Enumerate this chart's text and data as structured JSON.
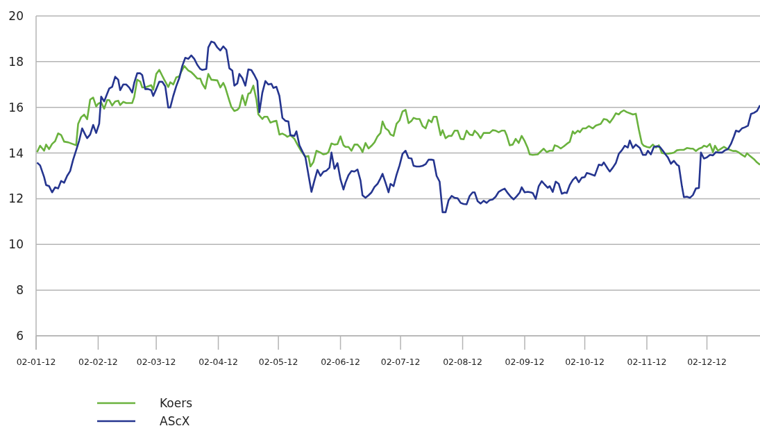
{
  "chart_data": {
    "type": "line",
    "ylim": [
      6,
      20
    ],
    "yticks": [
      6,
      8,
      10,
      12,
      14,
      16,
      18,
      20
    ],
    "xlim": [
      "2012-01-02",
      "2012-12-28T12:00"
    ],
    "xticks": [
      {
        "value": "2012-01-02",
        "label": "02-01-12"
      },
      {
        "value": "2012-02-02",
        "label": "02-02-12"
      },
      {
        "value": "2012-03-02",
        "label": "02-03-12"
      },
      {
        "value": "2012-04-02",
        "label": "02-04-12"
      },
      {
        "value": "2012-05-02",
        "label": "02-05-12"
      },
      {
        "value": "2012-06-02",
        "label": "02-06-12"
      },
      {
        "value": "2012-07-02",
        "label": "02-07-12"
      },
      {
        "value": "2012-08-02",
        "label": "02-08-12"
      },
      {
        "value": "2012-09-02",
        "label": "02-09-12"
      },
      {
        "value": "2012-10-02",
        "label": "02-10-12"
      },
      {
        "value": "2012-11-02",
        "label": "02-11-12"
      },
      {
        "value": "2012-12-02",
        "label": "02-12-12"
      }
    ],
    "grid": "y",
    "legend": "bottom",
    "marker": "none",
    "line_style": "solid",
    "series": [
      {
        "name": "Koers",
        "color": "#6ab23e",
        "x": [
          "2012-01-02T12:00",
          "2012-01-04",
          "2012-01-06",
          "2012-01-07",
          "2012-01-08T12:00",
          "2012-01-10",
          "2012-01-11T12:00",
          "2012-01-13",
          "2012-01-14T12:00",
          "2012-01-16",
          "2012-01-18",
          "2012-01-22",
          "2012-01-23",
          "2012-01-24T12:00",
          "2012-01-26",
          "2012-01-27T12:00",
          "2012-01-29",
          "2012-01-30T12:00",
          "2012-02-01",
          "2012-02-02",
          "2012-02-03T12:00",
          "2012-02-05",
          "2012-02-06T12:00",
          "2012-02-07T12:00",
          "2012-02-09",
          "2012-02-10T12:00",
          "2012-02-12",
          "2012-02-13",
          "2012-02-14T12:00",
          "2012-02-16",
          "2012-02-19",
          "2012-02-20",
          "2012-02-21T12:00",
          "2012-02-23",
          "2012-02-24",
          "2012-02-25T12:00",
          "2012-02-28T12:00",
          "2012-02-29T12:00",
          "2012-03-02",
          "2012-03-03T12:00",
          "2012-03-05",
          "2012-03-06",
          "2012-03-08",
          "2012-03-09",
          "2012-03-10T12:00",
          "2012-03-12",
          "2012-03-13T12:00",
          "2012-03-14T12:00",
          "2012-03-16",
          "2012-03-18",
          "2012-03-19T12:00",
          "2012-03-21",
          "2012-03-22T12:00",
          "2012-03-24",
          "2012-03-25",
          "2012-03-26T12:00",
          "2012-03-28",
          "2012-03-29T12:00",
          "2012-04-01T12:00",
          "2012-04-03",
          "2012-04-04T12:00",
          "2012-04-05T12:00",
          "2012-04-07T12:00",
          "2012-04-08T12:00",
          "2012-04-10",
          "2012-04-11T12:00",
          "2012-04-12T12:00",
          "2012-04-14",
          "2012-04-15T12:00",
          "2012-04-17",
          "2012-04-18",
          "2012-04-19T12:00",
          "2012-04-21",
          "2012-04-22",
          "2012-04-24",
          "2012-04-25",
          "2012-04-26T12:00",
          "2012-04-28",
          "2012-04-29T12:00",
          "2012-05-01",
          "2012-05-02T12:00",
          "2012-05-04",
          "2012-05-05T12:00",
          "2012-05-06T12:00",
          "2012-05-08",
          "2012-05-10",
          "2012-05-11T12:00",
          "2012-05-13T12:00",
          "2012-05-15T12:00",
          "2012-05-17",
          "2012-05-18",
          "2012-05-19T12:00",
          "2012-05-21",
          "2012-05-23",
          "2012-05-24T12:00",
          "2012-05-26",
          "2012-05-27",
          "2012-05-28T12:00",
          "2012-05-30",
          "2012-05-31T12:00",
          "2012-06-02",
          "2012-06-03T12:00",
          "2012-06-04T12:00",
          "2012-06-06",
          "2012-06-07T12:00",
          "2012-06-09",
          "2012-06-10T12:00",
          "2012-06-12",
          "2012-06-13",
          "2012-06-14T12:00",
          "2012-06-16",
          "2012-06-17T12:00",
          "2012-06-19",
          "2012-06-20T12:00",
          "2012-06-22",
          "2012-06-23",
          "2012-06-24T12:00",
          "2012-06-26",
          "2012-06-27",
          "2012-06-28T12:00",
          "2012-06-30",
          "2012-07-01T12:00",
          "2012-07-03",
          "2012-07-04T12:00",
          "2012-07-06",
          "2012-07-07T12:00",
          "2012-07-08T12:00",
          "2012-07-10",
          "2012-07-11T12:00",
          "2012-07-13",
          "2012-07-14T12:00",
          "2012-07-16",
          "2012-07-17T12:00",
          "2012-07-18T12:00",
          "2012-07-20",
          "2012-07-22",
          "2012-07-23",
          "2012-07-24T12:00",
          "2012-07-26",
          "2012-07-27T12:00",
          "2012-07-29",
          "2012-07-30T12:00",
          "2012-08-01",
          "2012-08-02T12:00",
          "2012-08-04",
          "2012-08-05T12:00",
          "2012-08-07",
          "2012-08-08",
          "2012-08-09T12:00",
          "2012-08-11",
          "2012-08-12T12:00",
          "2012-08-14",
          "2012-08-15T12:00",
          "2012-08-17",
          "2012-08-18T12:00",
          "2012-08-20",
          "2012-08-21T12:00",
          "2012-08-23",
          "2012-08-24",
          "2012-08-25T12:00",
          "2012-08-27",
          "2012-08-28T12:00",
          "2012-08-30",
          "2012-08-31T12:00",
          "2012-09-02",
          "2012-09-03T12:00",
          "2012-09-04T12:00",
          "2012-09-06",
          "2012-09-08T12:00",
          "2012-09-10",
          "2012-09-11T12:00",
          "2012-09-13",
          "2012-09-14T12:00",
          "2012-09-16",
          "2012-09-17",
          "2012-09-18T12:00",
          "2012-09-20",
          "2012-09-21T12:00",
          "2012-09-23",
          "2012-09-24T12:00",
          "2012-09-26",
          "2012-09-27",
          "2012-09-28T12:00",
          "2012-09-29T12:00",
          "2012-10-01",
          "2012-10-02T12:00",
          "2012-10-04",
          "2012-10-06",
          "2012-10-07T12:00",
          "2012-10-09",
          "2012-10-10",
          "2012-10-11T12:00",
          "2012-10-13",
          "2012-10-14T12:00",
          "2012-10-16",
          "2012-10-17T12:00",
          "2012-10-19",
          "2012-10-20",
          "2012-10-21T12:00",
          "2012-10-23",
          "2012-10-24T12:00",
          "2012-10-26",
          "2012-10-27T12:00",
          "2012-10-29",
          "2012-10-30T12:00",
          "2012-10-31T12:00",
          "2012-11-02",
          "2012-11-03T12:00",
          "2012-11-05",
          "2012-11-06T12:00",
          "2012-11-08",
          "2012-11-09T12:00",
          "2012-11-11",
          "2012-11-12T12:00",
          "2012-11-14",
          "2012-11-15T12:00",
          "2012-11-17",
          "2012-11-18T12:00",
          "2012-11-20T12:00",
          "2012-11-22",
          "2012-11-24",
          "2012-11-25",
          "2012-11-26T12:00",
          "2012-11-28",
          "2012-11-29T12:00",
          "2012-11-30T12:00",
          "2012-12-02",
          "2012-12-03T12:00",
          "2012-12-05",
          "2012-12-06",
          "2012-12-07T12:00",
          "2012-12-09",
          "2012-12-10T12:00",
          "2012-12-12",
          "2012-12-13T12:00",
          "2012-12-15",
          "2012-12-16T12:00",
          "2012-12-18",
          "2012-12-19T12:00",
          "2012-12-21",
          "2012-12-22",
          "2012-12-23T12:00",
          "2012-12-25T12:00",
          "2012-12-27",
          "2012-12-28T12:00"
        ],
        "values": [
          14.04,
          14.32,
          14.1,
          14.37,
          14.17,
          14.4,
          14.52,
          14.86,
          14.79,
          14.5,
          14.47,
          14.34,
          15.28,
          15.57,
          15.68,
          15.48,
          16.34,
          16.43,
          16.04,
          16.16,
          16.22,
          15.94,
          16.32,
          16.32,
          16.08,
          16.26,
          16.29,
          16.1,
          16.24,
          16.19,
          16.19,
          16.45,
          17.21,
          17.13,
          16.87,
          16.87,
          16.97,
          16.77,
          17.46,
          17.64,
          17.38,
          17.21,
          16.89,
          17.1,
          17.0,
          17.31,
          17.36,
          17.56,
          17.81,
          17.61,
          17.54,
          17.41,
          17.26,
          17.26,
          17.03,
          16.82,
          17.46,
          17.21,
          17.18,
          16.87,
          17.07,
          16.87,
          16.29,
          16.02,
          15.84,
          15.89,
          15.99,
          16.53,
          16.09,
          16.6,
          16.63,
          16.95,
          16.35,
          15.69,
          15.49,
          15.59,
          15.59,
          15.33,
          15.38,
          15.41,
          14.81,
          14.85,
          14.78,
          14.71,
          14.78,
          14.62,
          14.37,
          14.07,
          13.84,
          13.87,
          13.41,
          13.61,
          14.1,
          14.02,
          13.94,
          13.97,
          14.04,
          14.42,
          14.37,
          14.39,
          14.73,
          14.34,
          14.27,
          14.27,
          14.1,
          14.37,
          14.37,
          14.22,
          14.04,
          14.44,
          14.2,
          14.32,
          14.47,
          14.73,
          14.88,
          15.38,
          15.08,
          14.98,
          14.81,
          14.75,
          15.28,
          15.43,
          15.82,
          15.89,
          15.31,
          15.41,
          15.54,
          15.49,
          15.49,
          15.18,
          15.08,
          15.45,
          15.35,
          15.59,
          15.59,
          14.78,
          15.0,
          14.65,
          14.75,
          14.75,
          14.98,
          14.98,
          14.62,
          14.6,
          14.98,
          14.81,
          14.78,
          14.98,
          14.85,
          14.65,
          14.88,
          14.88,
          14.88,
          15.0,
          14.98,
          14.91,
          14.98,
          14.98,
          14.78,
          14.34,
          14.37,
          14.62,
          14.44,
          14.75,
          14.52,
          14.22,
          13.94,
          13.92,
          13.94,
          14.07,
          14.19,
          14.04,
          14.1,
          14.1,
          14.34,
          14.29,
          14.2,
          14.29,
          14.4,
          14.49,
          14.95,
          14.85,
          14.98,
          14.91,
          15.08,
          15.08,
          15.18,
          15.08,
          15.2,
          15.25,
          15.28,
          15.49,
          15.46,
          15.33,
          15.51,
          15.74,
          15.69,
          15.79,
          15.87,
          15.79,
          15.74,
          15.69,
          15.72,
          15.03,
          14.42,
          14.32,
          14.27,
          14.24,
          14.37,
          14.24,
          14.34,
          14.0,
          13.97,
          13.97,
          13.99,
          14.02,
          14.12,
          14.14,
          14.14,
          14.22,
          14.19,
          14.19,
          14.09,
          14.19,
          14.24,
          14.32,
          14.27,
          14.4,
          14.04,
          14.32,
          14.1,
          14.19,
          14.27,
          14.19,
          14.14,
          14.09,
          14.09,
          14.02,
          13.92,
          13.84,
          13.99,
          13.87,
          13.73,
          13.59,
          13.49
        ]
      },
      {
        "name": "AScX",
        "color": "#25358f",
        "x": [
          "2012-01-02T12:00",
          "2012-01-04",
          "2012-01-06",
          "2012-01-07",
          "2012-01-08T12:00",
          "2012-01-10",
          "2012-01-11T12:00",
          "2012-01-13",
          "2012-01-14T12:00",
          "2012-01-16",
          "2012-01-17T12:00",
          "2012-01-19",
          "2012-01-20T12:00",
          "2012-01-22",
          "2012-01-23T12:00",
          "2012-01-25",
          "2012-01-26T12:00",
          "2012-01-27T12:00",
          "2012-01-29",
          "2012-01-30T12:00",
          "2012-02-01",
          "2012-02-02T12:00",
          "2012-02-03T12:00",
          "2012-02-05",
          "2012-02-06T12:00",
          "2012-02-07T12:00",
          "2012-02-09",
          "2012-02-10T12:00",
          "2012-02-12",
          "2012-02-13",
          "2012-02-14T12:00",
          "2012-02-16",
          "2012-02-17T12:00",
          "2012-02-19",
          "2012-02-20",
          "2012-02-21T12:00",
          "2012-02-23",
          "2012-02-24",
          "2012-02-25T12:00",
          "2012-02-27",
          "2012-02-28T12:00",
          "2012-02-29T12:00",
          "2012-03-02",
          "2012-03-03T12:00",
          "2012-03-05",
          "2012-03-06T12:00",
          "2012-03-08",
          "2012-03-09",
          "2012-03-10T12:00",
          "2012-03-12",
          "2012-03-13T12:00",
          "2012-03-15",
          "2012-03-16T12:00",
          "2012-03-18",
          "2012-03-19T12:00",
          "2012-03-21",
          "2012-03-22T12:00",
          "2012-03-24",
          "2012-03-25",
          "2012-03-27",
          "2012-03-28",
          "2012-03-29T12:00",
          "2012-03-31",
          "2012-04-01T12:00",
          "2012-04-03",
          "2012-04-04T12:00",
          "2012-04-06",
          "2012-04-07T12:00",
          "2012-04-09",
          "2012-04-10",
          "2012-04-11T12:00",
          "2012-04-12T12:00",
          "2012-04-14",
          "2012-04-15T12:00",
          "2012-04-17",
          "2012-04-18T12:00",
          "2012-04-20",
          "2012-04-21T12:00",
          "2012-04-22T12:00",
          "2012-04-24",
          "2012-04-25T12:00",
          "2012-04-27",
          "2012-04-28T12:00",
          "2012-04-29T12:00",
          "2012-05-01",
          "2012-05-02T12:00",
          "2012-05-04",
          "2012-05-05T12:00",
          "2012-05-07",
          "2012-05-08",
          "2012-05-10",
          "2012-05-11",
          "2012-05-12T12:00",
          "2012-05-14",
          "2012-05-15T12:00",
          "2012-05-17",
          "2012-05-18T12:00",
          "2012-05-20",
          "2012-05-21T12:00",
          "2012-05-23",
          "2012-05-24T12:00",
          "2012-05-26",
          "2012-05-27T12:00",
          "2012-05-28T12:00",
          "2012-05-30",
          "2012-05-31T12:00",
          "2012-06-02",
          "2012-06-03T12:00",
          "2012-06-04T12:00",
          "2012-06-06",
          "2012-06-07T12:00",
          "2012-06-09",
          "2012-06-10T12:00",
          "2012-06-12",
          "2012-06-13",
          "2012-06-14T12:00",
          "2012-06-16",
          "2012-06-17T12:00",
          "2012-06-19",
          "2012-06-20T12:00",
          "2012-06-22",
          "2012-06-23",
          "2012-06-24T12:00",
          "2012-06-26",
          "2012-06-27",
          "2012-06-28T12:00",
          "2012-06-30",
          "2012-07-01T12:00",
          "2012-07-03",
          "2012-07-04T12:00",
          "2012-07-06",
          "2012-07-07T12:00",
          "2012-07-08T12:00",
          "2012-07-10",
          "2012-07-11T12:00",
          "2012-07-13",
          "2012-07-14T12:00",
          "2012-07-16",
          "2012-07-17T12:00",
          "2012-07-18T12:00",
          "2012-07-20",
          "2012-07-21T12:00",
          "2012-07-23",
          "2012-07-24T12:00",
          "2012-07-26",
          "2012-07-27T12:00",
          "2012-07-29",
          "2012-07-30T12:00",
          "2012-08-01",
          "2012-08-02T12:00",
          "2012-08-04",
          "2012-08-05T12:00",
          "2012-08-07",
          "2012-08-08",
          "2012-08-09T12:00",
          "2012-08-11",
          "2012-08-12T12:00",
          "2012-08-14",
          "2012-08-15T12:00",
          "2012-08-17",
          "2012-08-18T12:00",
          "2012-08-20",
          "2012-08-21T12:00",
          "2012-08-23",
          "2012-08-24T12:00",
          "2012-08-26",
          "2012-08-27T12:00",
          "2012-08-29",
          "2012-08-30T12:00",
          "2012-08-31T12:00",
          "2012-09-02",
          "2012-09-03T12:00",
          "2012-09-05",
          "2012-09-06",
          "2012-09-07T12:00",
          "2012-09-09",
          "2012-09-10T12:00",
          "2012-09-12",
          "2012-09-13T12:00",
          "2012-09-14T12:00",
          "2012-09-16",
          "2012-09-17T12:00",
          "2012-09-19",
          "2012-09-20T12:00",
          "2012-09-22",
          "2012-09-23",
          "2012-09-24T12:00",
          "2012-09-26",
          "2012-09-27T12:00",
          "2012-09-29",
          "2012-09-30T12:00",
          "2012-10-02",
          "2012-10-03",
          "2012-10-04T12:00",
          "2012-10-07",
          "2012-10-09",
          "2012-10-10T12:00",
          "2012-10-11T12:00",
          "2012-10-13T12:00",
          "2012-10-14T12:00",
          "2012-10-16",
          "2012-10-17T12:00",
          "2012-10-19",
          "2012-10-20T12:00",
          "2012-10-22",
          "2012-10-23T12:00",
          "2012-10-24T12:00",
          "2012-10-26",
          "2012-10-27T12:00",
          "2012-10-29T12:00",
          "2012-10-31",
          "2012-11-01T12:00",
          "2012-11-02T12:00",
          "2012-11-04",
          "2012-11-05T12:00",
          "2012-11-07",
          "2012-11-08T12:00",
          "2012-11-10",
          "2012-11-11T12:00",
          "2012-11-12T12:00",
          "2012-11-14",
          "2012-11-15T12:00",
          "2012-11-17",
          "2012-11-18",
          "2012-11-19T12:00",
          "2012-11-20T12:00",
          "2012-11-22",
          "2012-11-23T12:00",
          "2012-11-25",
          "2012-11-26T12:00",
          "2012-11-28",
          "2012-11-29",
          "2012-11-30T12:00",
          "2012-12-02",
          "2012-12-03T12:00",
          "2012-12-05",
          "2012-12-06T12:00",
          "2012-12-08",
          "2012-12-09T12:00",
          "2012-12-11",
          "2012-12-12T12:00",
          "2012-12-14",
          "2012-12-15T12:00",
          "2012-12-16T12:00",
          "2012-12-18",
          "2012-12-19T12:00",
          "2012-12-21",
          "2012-12-22T12:00",
          "2012-12-24",
          "2012-12-25T12:00",
          "2012-12-27",
          "2012-12-28T12:00"
        ],
        "values": [
          13.58,
          13.46,
          12.95,
          12.6,
          12.55,
          12.28,
          12.5,
          12.45,
          12.78,
          12.7,
          13.0,
          13.21,
          13.71,
          14.12,
          14.54,
          15.08,
          14.81,
          14.65,
          14.81,
          15.23,
          14.88,
          15.28,
          16.47,
          16.26,
          16.6,
          16.82,
          16.9,
          17.34,
          17.21,
          16.75,
          17.0,
          17.0,
          16.87,
          16.65,
          17.07,
          17.49,
          17.49,
          17.41,
          16.8,
          16.8,
          16.75,
          16.5,
          16.8,
          17.12,
          17.12,
          16.92,
          15.99,
          15.99,
          16.5,
          16.93,
          17.28,
          17.81,
          18.17,
          18.12,
          18.27,
          18.12,
          17.86,
          17.68,
          17.64,
          17.68,
          18.62,
          18.88,
          18.83,
          18.62,
          18.49,
          18.67,
          18.52,
          17.71,
          17.61,
          16.95,
          17.05,
          17.46,
          17.28,
          16.95,
          17.66,
          17.63,
          17.41,
          17.15,
          15.79,
          16.65,
          17.15,
          17.0,
          17.03,
          16.85,
          16.9,
          16.5,
          15.54,
          15.41,
          15.38,
          14.78,
          14.75,
          14.95,
          14.34,
          14.07,
          13.81,
          13.05,
          12.3,
          12.8,
          13.26,
          13.0,
          13.18,
          13.23,
          13.36,
          14.02,
          13.31,
          13.56,
          12.85,
          12.4,
          12.7,
          13.03,
          13.21,
          13.19,
          13.28,
          12.8,
          12.15,
          12.04,
          12.15,
          12.28,
          12.52,
          12.65,
          12.9,
          13.09,
          12.7,
          12.28,
          12.65,
          12.55,
          13.05,
          13.46,
          13.97,
          14.1,
          13.78,
          13.76,
          13.44,
          13.41,
          13.41,
          13.44,
          13.51,
          13.71,
          13.71,
          13.69,
          13.0,
          12.75,
          11.41,
          11.41,
          11.94,
          12.12,
          12.04,
          12.02,
          11.82,
          11.77,
          11.76,
          12.12,
          12.28,
          12.28,
          11.89,
          11.79,
          11.91,
          11.82,
          11.94,
          11.97,
          12.09,
          12.3,
          12.38,
          12.44,
          12.25,
          12.09,
          11.97,
          12.11,
          12.27,
          12.5,
          12.28,
          12.3,
          12.28,
          12.25,
          11.99,
          12.55,
          12.77,
          12.62,
          12.48,
          12.55,
          12.3,
          12.75,
          12.65,
          12.22,
          12.27,
          12.25,
          12.6,
          12.82,
          12.95,
          12.72,
          12.92,
          12.95,
          13.13,
          13.09,
          13.01,
          13.49,
          13.46,
          13.59,
          13.31,
          13.19,
          13.36,
          13.56,
          13.97,
          14.12,
          14.32,
          14.24,
          14.55,
          14.22,
          14.37,
          14.22,
          13.92,
          13.92,
          14.1,
          13.94,
          14.27,
          14.3,
          14.27,
          14.1,
          13.92,
          13.81,
          13.53,
          13.66,
          13.49,
          13.44,
          12.55,
          12.07,
          12.09,
          12.04,
          12.16,
          12.45,
          12.47,
          14.02,
          13.76,
          13.81,
          13.92,
          13.9,
          14.04,
          14.02,
          14.02,
          14.12,
          14.17,
          14.4,
          14.73,
          14.98,
          14.93,
          15.08,
          15.13,
          15.2,
          15.71,
          15.76,
          15.84,
          16.09
        ]
      }
    ]
  }
}
